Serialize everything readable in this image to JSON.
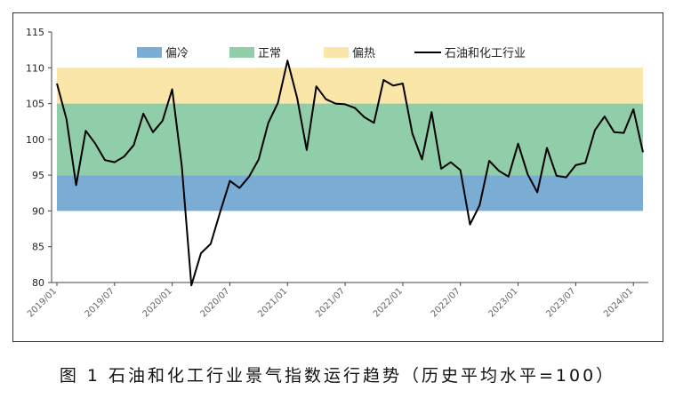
{
  "figure": {
    "caption": "图 1  石油和化工行业景气指数运行趋势（历史平均水平=100）"
  },
  "chart_data": {
    "type": "line",
    "title": "",
    "xlabel": "",
    "ylabel": "",
    "ylim": [
      80,
      115
    ],
    "yticks": [
      80,
      85,
      90,
      95,
      100,
      105,
      110,
      115
    ],
    "xticks": [
      "2019/01",
      "2019/07",
      "2020/01",
      "2020/07",
      "2021/01",
      "2021/07",
      "2022/01",
      "2022/07",
      "2023/01",
      "2023/07",
      "2024/01"
    ],
    "bands": [
      {
        "name": "偏冷",
        "from": 90,
        "to": 95,
        "color": "#7bacd4"
      },
      {
        "name": "正常",
        "from": 95,
        "to": 105,
        "color": "#90ceaa"
      },
      {
        "name": "偏热",
        "from": 105,
        "to": 110,
        "color": "#fbe6a9"
      }
    ],
    "legend_position": "top",
    "series": [
      {
        "name": "石油和化工行业",
        "color": "#000000",
        "x": [
          "2019/01",
          "2019/02",
          "2019/03",
          "2019/04",
          "2019/05",
          "2019/06",
          "2019/07",
          "2019/08",
          "2019/09",
          "2019/10",
          "2019/11",
          "2019/12",
          "2020/01",
          "2020/02",
          "2020/03",
          "2020/04",
          "2020/05",
          "2020/06",
          "2020/07",
          "2020/08",
          "2020/09",
          "2020/10",
          "2020/11",
          "2020/12",
          "2021/01",
          "2021/02",
          "2021/03",
          "2021/04",
          "2021/05",
          "2021/06",
          "2021/07",
          "2021/08",
          "2021/09",
          "2021/10",
          "2021/11",
          "2021/12",
          "2022/01",
          "2022/02",
          "2022/03",
          "2022/04",
          "2022/05",
          "2022/06",
          "2022/07",
          "2022/08",
          "2022/09",
          "2022/10",
          "2022/11",
          "2022/12",
          "2023/01",
          "2023/02",
          "2023/03",
          "2023/04",
          "2023/05",
          "2023/06",
          "2023/07",
          "2023/08",
          "2023/09",
          "2023/10",
          "2023/11",
          "2023/12",
          "2024/01",
          "2024/02"
        ],
        "values": [
          107.8,
          102.8,
          93.6,
          101.2,
          99.4,
          97.1,
          96.8,
          97.6,
          99.2,
          103.6,
          101.0,
          102.6,
          107.0,
          96.3,
          79.6,
          84.1,
          85.4,
          89.9,
          94.2,
          93.2,
          94.8,
          97.2,
          102.3,
          105.1,
          111.0,
          105.8,
          98.5,
          107.4,
          105.6,
          105.0,
          104.9,
          104.4,
          103.1,
          102.3,
          108.3,
          107.5,
          107.8,
          100.8,
          97.2,
          103.8,
          95.9,
          96.8,
          95.7,
          88.1,
          90.8,
          97.0,
          95.6,
          94.8,
          99.4,
          95.1,
          92.6,
          98.8,
          94.9,
          94.7,
          96.4,
          96.7,
          101.3,
          103.2,
          101.0,
          100.9,
          104.2,
          98.2
        ]
      }
    ]
  }
}
